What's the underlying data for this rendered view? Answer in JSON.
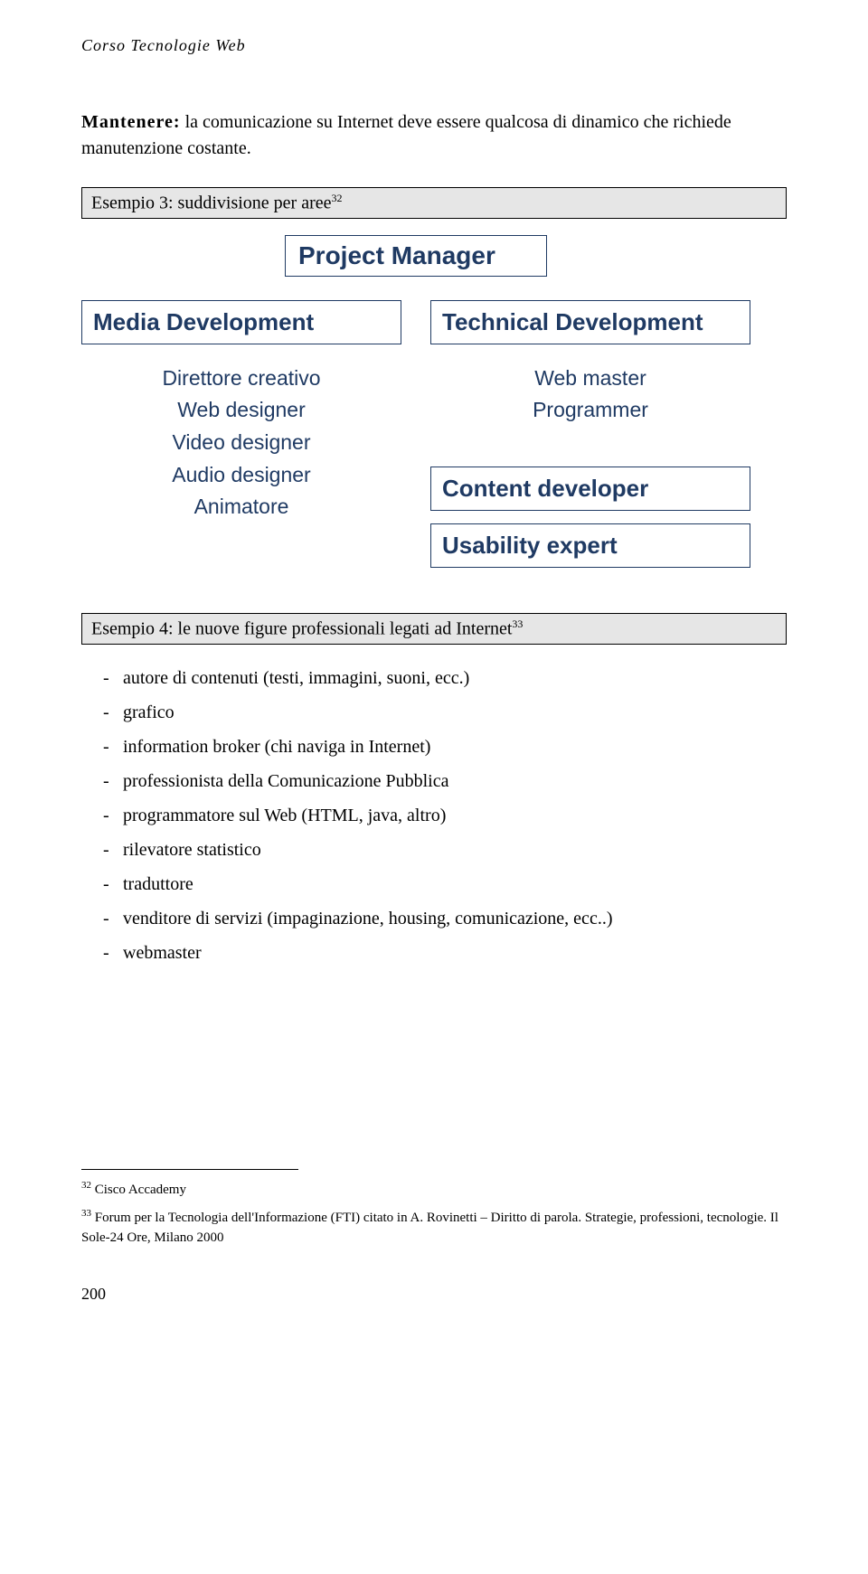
{
  "header": {
    "running": "Corso Tecnologie Web"
  },
  "para1": {
    "lead": "Mantenere:",
    "rest": " la comunicazione su Internet deve essere qualcosa di dinamico che richiede manutenzione costante."
  },
  "example3": {
    "text": "Esempio 3: suddivisione per aree",
    "sup": "32"
  },
  "diagram": {
    "pm": "Project Manager",
    "media_header": "Media Development",
    "media_roles": [
      "Direttore creativo",
      "Web designer",
      "Video designer",
      "Audio designer",
      "Animatore"
    ],
    "tech_header": "Technical Development",
    "tech_roles": [
      "Web master",
      "Programmer"
    ],
    "content_dev": "Content developer",
    "usability": "Usability expert",
    "box_border_color": "#1f3a63",
    "text_color": "#1f3a63",
    "header_fontsize": 26,
    "role_fontsize": 23
  },
  "example4": {
    "text": "Esempio 4: le nuove figure professionali legati ad Internet",
    "sup": "33"
  },
  "list": [
    "autore di contenuti (testi, immagini, suoni, ecc.)",
    "grafico",
    "information broker (chi naviga in Internet)",
    "professionista della Comunicazione Pubblica",
    "programmatore sul Web (HTML, java, altro)",
    "rilevatore statistico",
    "traduttore",
    "venditore di servizi (impaginazione, housing, comunicazione, ecc..)",
    "webmaster"
  ],
  "footnotes": {
    "n32": {
      "num": "32",
      "text": " Cisco Accademy"
    },
    "n33": {
      "num": "33",
      "text": " Forum per la Tecnologia dell'Informazione (FTI) citato in A. Rovinetti – Diritto di parola. Strategie, professioni, tecnologie. Il Sole-24 Ore, Milano 2000"
    }
  },
  "page_number": "200"
}
